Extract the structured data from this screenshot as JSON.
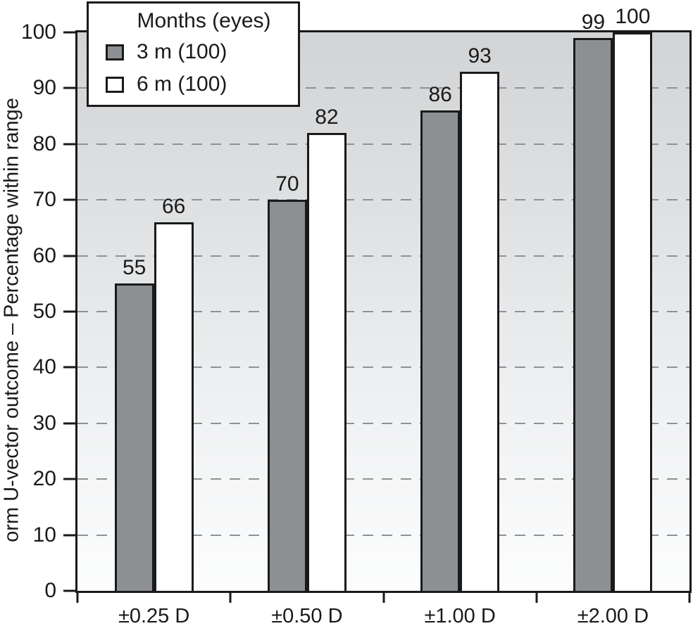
{
  "figure": {
    "kind": "grouped-bar-chart"
  },
  "legend": {
    "title": "Months (eyes)",
    "items": [
      {
        "label": "3 m (100)",
        "swatch_color": "#8d9093"
      },
      {
        "label": "6 m (100)",
        "swatch_color": "#ffffff"
      }
    ]
  },
  "chart_data": {
    "type": "bar",
    "categories": [
      "±0.25 D",
      "±0.50 D",
      "±1.00 D",
      "±2.00 D"
    ],
    "series": [
      {
        "name": "3 m (100)",
        "values": [
          55,
          70,
          86,
          99
        ],
        "fill": "#8d9093",
        "border": "#1a1a1a"
      },
      {
        "name": "6 m (100)",
        "values": [
          66,
          82,
          93,
          100
        ],
        "fill": "#ffffff",
        "border": "#1a1a1a"
      }
    ],
    "title": "",
    "xlabel": "",
    "ylabel": "orm U-vector outcome – Percentage within range",
    "ylim": [
      0,
      100
    ],
    "yticks": [
      0,
      10,
      20,
      30,
      40,
      50,
      60,
      70,
      80,
      90,
      100
    ],
    "bar_value_labels": true,
    "grid": {
      "horizontal": true,
      "style": "dashed",
      "color": "#8e9297"
    },
    "legend_position": "top-left",
    "plot_background_gradient": [
      "#d1d3d5",
      "#fcfdfd"
    ],
    "axis_color": "#1a1a1a"
  }
}
